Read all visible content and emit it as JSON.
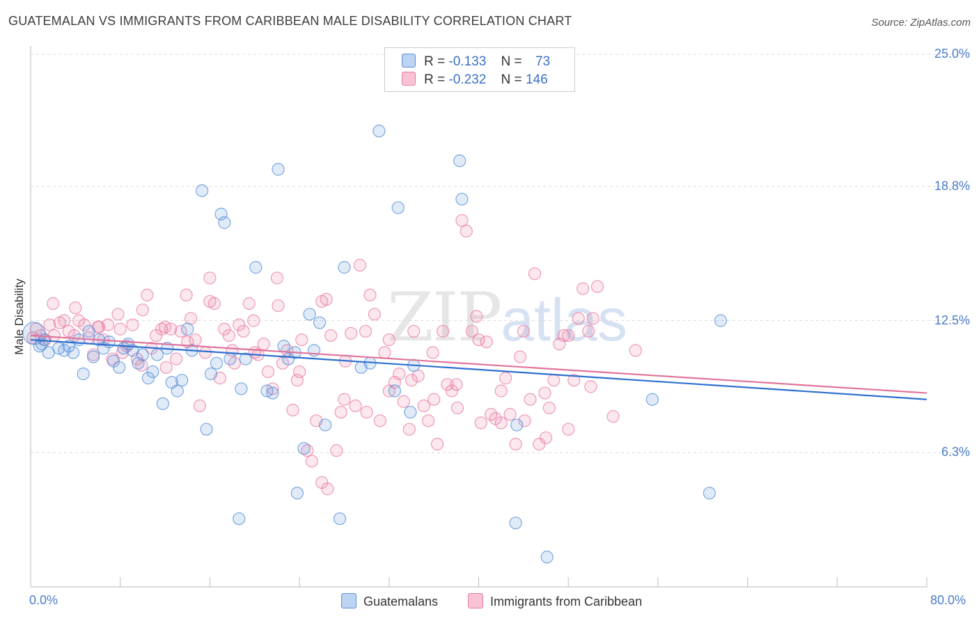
{
  "title": "GUATEMALAN VS IMMIGRANTS FROM CARIBBEAN MALE DISABILITY CORRELATION CHART",
  "source": "Source: ZipAtlas.com",
  "watermark": {
    "zip": "ZIP",
    "atlas": "atlas"
  },
  "legend": {
    "rows": [
      {
        "r_label": "R =",
        "r_value": "-0.133",
        "n_label": "N =",
        "n_value": "73"
      },
      {
        "r_label": "R =",
        "r_value": "-0.232",
        "n_label": "N =",
        "n_value": "146"
      }
    ]
  },
  "colors": {
    "guatemalans": "#5b92d9",
    "caribbean": "#e97aa3",
    "blue_line": "#2d6fcf",
    "pink_line": "#e0739b",
    "tick_label": "#4a7cc9",
    "grid": "#dddddd"
  },
  "chart_data": {
    "type": "scatter",
    "xlabel": "",
    "ylabel": "Male Disability",
    "xlim": [
      0,
      80
    ],
    "ylim": [
      0,
      25
    ],
    "x_tick_labels": [
      "0.0%",
      "80.0%"
    ],
    "y_ticks": [
      6.3,
      12.5,
      18.8,
      25.0
    ],
    "y_tick_labels": [
      "6.3%",
      "12.5%",
      "18.8%",
      "25.0%"
    ],
    "grid": "horizontal dashed",
    "legend_placement": "bottom",
    "series": [
      {
        "name": "Guatemalans",
        "r": -0.133,
        "n": 73,
        "trend": {
          "x": [
            0,
            80
          ],
          "y": [
            11.6,
            8.8
          ]
        },
        "points": [
          [
            0.3,
            11.9
          ],
          [
            0.8,
            11.3
          ],
          [
            1.2,
            11.6
          ],
          [
            1.6,
            11.0
          ],
          [
            2.5,
            11.2
          ],
          [
            3.0,
            11.1
          ],
          [
            3.4,
            11.3
          ],
          [
            3.8,
            11.0
          ],
          [
            4.3,
            11.6
          ],
          [
            4.7,
            10.0
          ],
          [
            5.2,
            12.0
          ],
          [
            5.6,
            10.8
          ],
          [
            6.1,
            11.6
          ],
          [
            6.5,
            11.2
          ],
          [
            7.0,
            11.5
          ],
          [
            7.4,
            10.6
          ],
          [
            7.9,
            10.3
          ],
          [
            8.3,
            11.2
          ],
          [
            8.7,
            11.4
          ],
          [
            9.1,
            11.1
          ],
          [
            9.6,
            10.5
          ],
          [
            10.0,
            10.9
          ],
          [
            10.5,
            9.8
          ],
          [
            10.9,
            10.1
          ],
          [
            11.3,
            10.9
          ],
          [
            11.8,
            8.6
          ],
          [
            12.2,
            11.2
          ],
          [
            12.6,
            9.6
          ],
          [
            13.1,
            9.2
          ],
          [
            13.5,
            9.7
          ],
          [
            14.0,
            12.1
          ],
          [
            14.4,
            11.1
          ],
          [
            15.3,
            18.6
          ],
          [
            15.7,
            7.4
          ],
          [
            16.1,
            10.0
          ],
          [
            16.6,
            10.5
          ],
          [
            17.0,
            17.5
          ],
          [
            17.3,
            17.1
          ],
          [
            17.8,
            10.7
          ],
          [
            18.6,
            3.2
          ],
          [
            18.8,
            9.3
          ],
          [
            19.2,
            10.7
          ],
          [
            20.1,
            15.0
          ],
          [
            21.1,
            9.2
          ],
          [
            21.6,
            9.1
          ],
          [
            22.1,
            19.6
          ],
          [
            22.6,
            11.3
          ],
          [
            23.0,
            10.7
          ],
          [
            23.6,
            11.0
          ],
          [
            23.8,
            4.4
          ],
          [
            24.4,
            6.5
          ],
          [
            24.9,
            12.8
          ],
          [
            25.3,
            11.1
          ],
          [
            25.8,
            12.4
          ],
          [
            26.3,
            7.6
          ],
          [
            27.6,
            3.2
          ],
          [
            28.0,
            15.0
          ],
          [
            29.5,
            10.3
          ],
          [
            30.3,
            10.5
          ],
          [
            31.1,
            21.4
          ],
          [
            32.5,
            9.2
          ],
          [
            32.8,
            17.8
          ],
          [
            33.9,
            8.2
          ],
          [
            34.2,
            10.4
          ],
          [
            38.3,
            20.0
          ],
          [
            38.5,
            18.2
          ],
          [
            43.3,
            3.0
          ],
          [
            43.4,
            7.6
          ],
          [
            46.1,
            1.4
          ],
          [
            55.5,
            8.8
          ],
          [
            60.6,
            4.4
          ],
          [
            61.6,
            12.5
          ],
          [
            1.0,
            11.4
          ]
        ]
      },
      {
        "name": "Immigrants from Caribbean",
        "r": -0.232,
        "n": 146,
        "trend": {
          "x": [
            0,
            80
          ],
          "y": [
            11.8,
            9.1
          ]
        },
        "points": [
          [
            0.2,
            11.7
          ],
          [
            0.5,
            12.1
          ],
          [
            0.9,
            11.8
          ],
          [
            1.3,
            11.6
          ],
          [
            1.7,
            12.3
          ],
          [
            2.1,
            11.8
          ],
          [
            2.6,
            12.4
          ],
          [
            3.0,
            12.5
          ],
          [
            3.4,
            12.0
          ],
          [
            3.9,
            11.8
          ],
          [
            4.3,
            12.5
          ],
          [
            4.8,
            12.3
          ],
          [
            5.2,
            11.7
          ],
          [
            5.6,
            10.9
          ],
          [
            6.1,
            12.2
          ],
          [
            6.5,
            11.6
          ],
          [
            6.9,
            12.3
          ],
          [
            7.3,
            10.7
          ],
          [
            7.8,
            12.8
          ],
          [
            8.2,
            11.0
          ],
          [
            8.6,
            11.3
          ],
          [
            9.1,
            12.3
          ],
          [
            9.5,
            10.7
          ],
          [
            9.9,
            10.4
          ],
          [
            10.4,
            13.7
          ],
          [
            10.8,
            11.2
          ],
          [
            11.2,
            11.8
          ],
          [
            11.7,
            12.1
          ],
          [
            12.1,
            10.3
          ],
          [
            12.5,
            12.1
          ],
          [
            13.0,
            10.7
          ],
          [
            13.4,
            12.0
          ],
          [
            13.9,
            13.7
          ],
          [
            14.3,
            12.6
          ],
          [
            14.7,
            11.6
          ],
          [
            15.1,
            8.5
          ],
          [
            15.6,
            11.0
          ],
          [
            16.0,
            14.5
          ],
          [
            16.4,
            13.3
          ],
          [
            16.9,
            9.8
          ],
          [
            17.3,
            12.1
          ],
          [
            17.7,
            11.8
          ],
          [
            18.2,
            10.5
          ],
          [
            18.6,
            12.3
          ],
          [
            19.0,
            12.0
          ],
          [
            19.5,
            13.3
          ],
          [
            19.9,
            12.5
          ],
          [
            20.3,
            10.9
          ],
          [
            20.8,
            11.4
          ],
          [
            21.2,
            10.1
          ],
          [
            21.6,
            9.3
          ],
          [
            22.1,
            13.2
          ],
          [
            22.5,
            10.5
          ],
          [
            22.9,
            11.1
          ],
          [
            23.4,
            8.3
          ],
          [
            23.8,
            9.7
          ],
          [
            24.2,
            11.6
          ],
          [
            24.7,
            6.4
          ],
          [
            25.1,
            5.9
          ],
          [
            25.5,
            7.8
          ],
          [
            26.0,
            13.4
          ],
          [
            26.4,
            13.5
          ],
          [
            26.8,
            11.8
          ],
          [
            27.3,
            6.4
          ],
          [
            27.7,
            8.2
          ],
          [
            28.1,
            10.6
          ],
          [
            28.6,
            11.9
          ],
          [
            29.0,
            8.5
          ],
          [
            29.4,
            15.1
          ],
          [
            29.9,
            12.0
          ],
          [
            30.3,
            13.7
          ],
          [
            30.7,
            12.8
          ],
          [
            31.2,
            7.8
          ],
          [
            31.6,
            11.0
          ],
          [
            32.0,
            9.2
          ],
          [
            32.5,
            9.6
          ],
          [
            32.9,
            10.0
          ],
          [
            33.3,
            8.7
          ],
          [
            33.8,
            7.4
          ],
          [
            34.2,
            12.0
          ],
          [
            34.6,
            9.9
          ],
          [
            35.1,
            8.5
          ],
          [
            35.5,
            7.8
          ],
          [
            35.9,
            11.0
          ],
          [
            36.3,
            6.7
          ],
          [
            36.8,
            12.0
          ],
          [
            37.2,
            9.5
          ],
          [
            37.6,
            9.2
          ],
          [
            38.1,
            8.4
          ],
          [
            38.5,
            17.2
          ],
          [
            38.9,
            16.7
          ],
          [
            39.4,
            12.0
          ],
          [
            39.8,
            12.7
          ],
          [
            40.2,
            7.7
          ],
          [
            40.7,
            11.5
          ],
          [
            41.1,
            8.1
          ],
          [
            41.5,
            7.9
          ],
          [
            42.0,
            7.7
          ],
          [
            42.4,
            9.8
          ],
          [
            42.8,
            8.1
          ],
          [
            43.3,
            6.7
          ],
          [
            43.7,
            10.8
          ],
          [
            44.1,
            7.8
          ],
          [
            44.6,
            8.8
          ],
          [
            45.0,
            14.7
          ],
          [
            45.4,
            6.7
          ],
          [
            45.9,
            9.1
          ],
          [
            46.3,
            8.4
          ],
          [
            46.7,
            9.7
          ],
          [
            47.2,
            11.4
          ],
          [
            47.6,
            11.8
          ],
          [
            48.0,
            7.4
          ],
          [
            48.5,
            9.7
          ],
          [
            48.9,
            12.6
          ],
          [
            49.3,
            14.0
          ],
          [
            49.8,
            12.0
          ],
          [
            50.2,
            12.6
          ],
          [
            50.6,
            14.1
          ],
          [
            2.0,
            13.3
          ],
          [
            4.0,
            13.1
          ],
          [
            6.0,
            12.2
          ],
          [
            8.0,
            12.1
          ],
          [
            10.0,
            13.0
          ],
          [
            12.0,
            12.2
          ],
          [
            14.0,
            11.5
          ],
          [
            16.0,
            13.4
          ],
          [
            18.0,
            11.1
          ],
          [
            20.0,
            11.0
          ],
          [
            22.0,
            14.5
          ],
          [
            24.0,
            10.1
          ],
          [
            26.0,
            4.9
          ],
          [
            26.5,
            4.6
          ],
          [
            28.0,
            8.8
          ],
          [
            30.0,
            8.2
          ],
          [
            32.0,
            11.6
          ],
          [
            34.0,
            9.7
          ],
          [
            36.0,
            8.8
          ],
          [
            38.0,
            9.5
          ],
          [
            40.0,
            11.6
          ],
          [
            42.0,
            9.2
          ],
          [
            44.0,
            12.0
          ],
          [
            46.0,
            7.0
          ],
          [
            48.0,
            11.8
          ],
          [
            50.0,
            9.4
          ],
          [
            52.0,
            8.0
          ],
          [
            54.0,
            11.1
          ]
        ]
      }
    ]
  },
  "bottom_legend": {
    "guatemalans_label": "Guatemalans",
    "caribbean_label": "Immigrants from Caribbean"
  }
}
